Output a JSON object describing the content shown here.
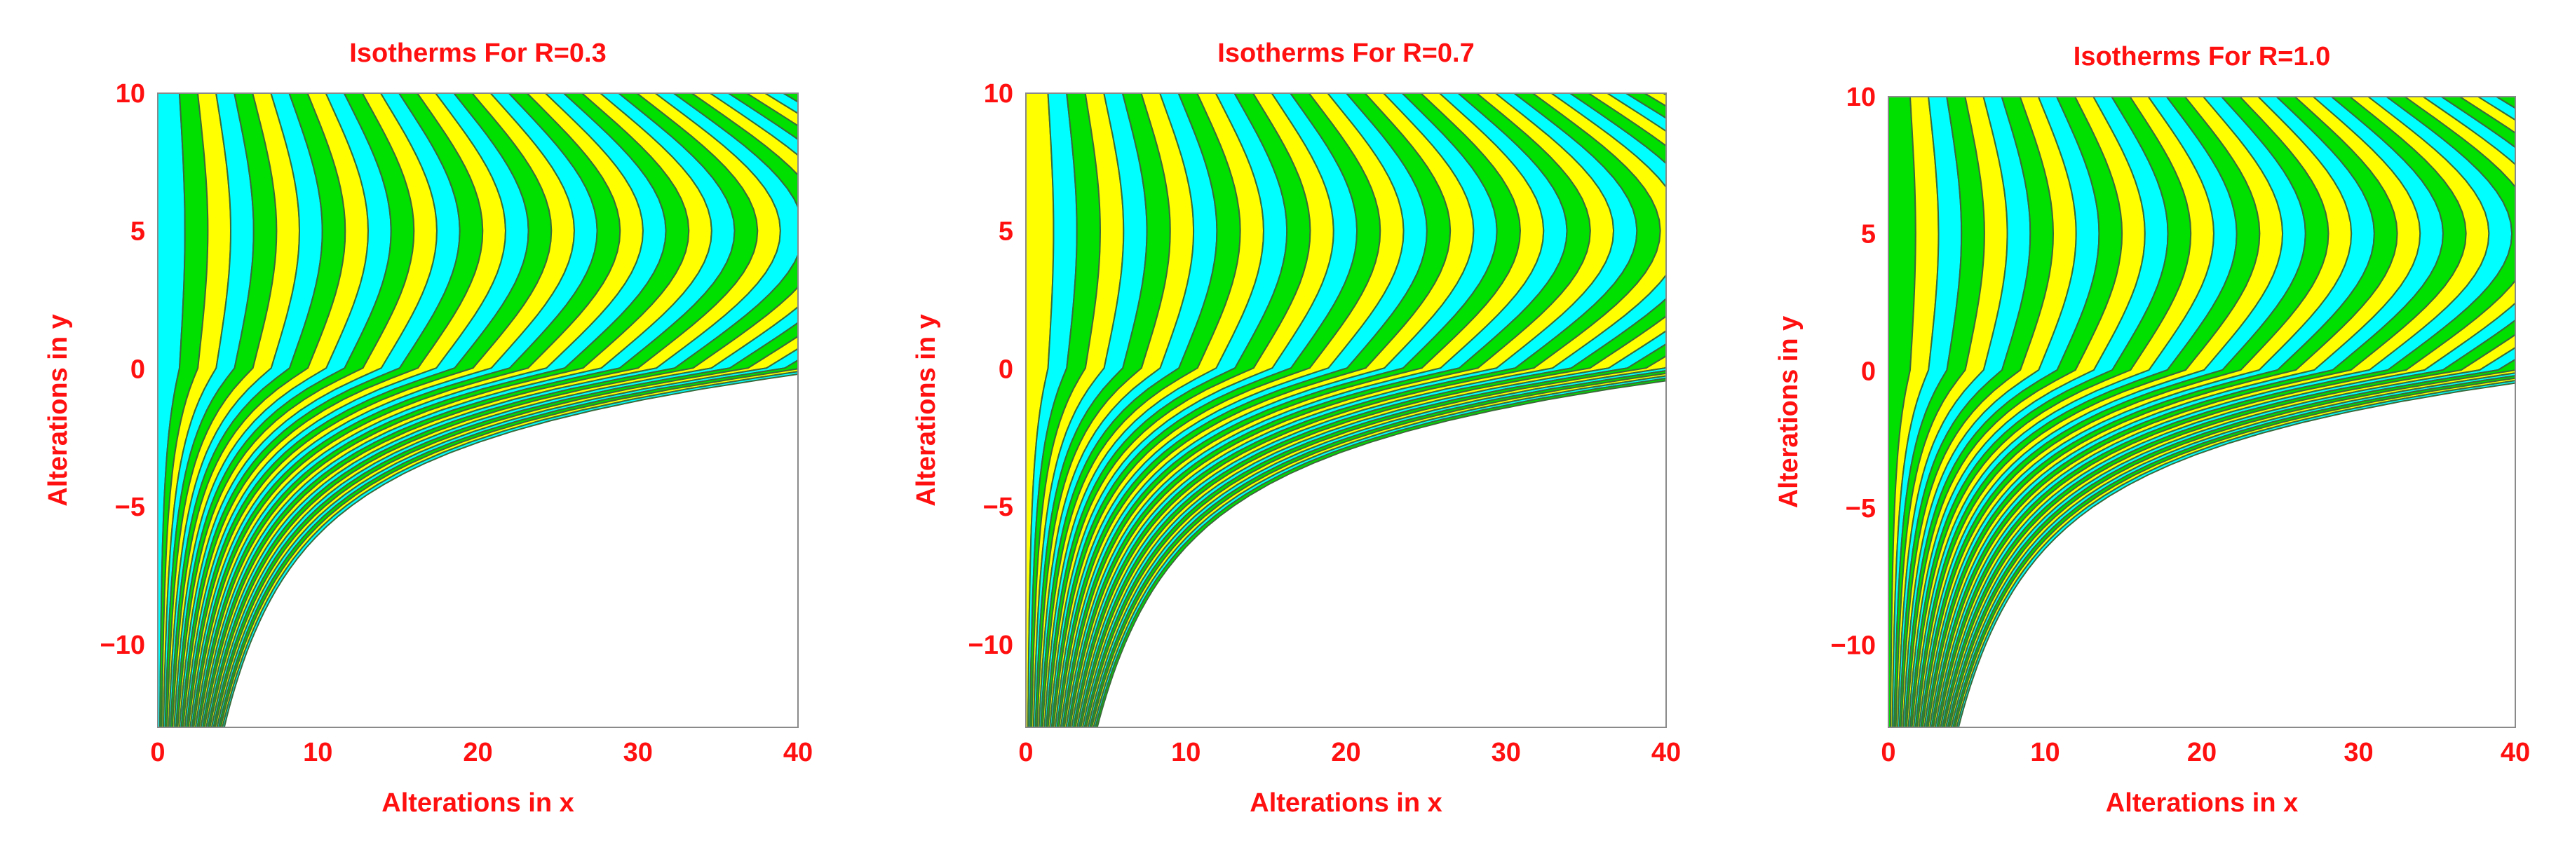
{
  "chart_data": [
    {
      "type": "contour",
      "title": "Isotherms For R=0.3",
      "xlabel": "Alterations in x",
      "ylabel": "Alterations in y",
      "xlim": [
        0,
        40
      ],
      "ylim": [
        -13,
        10
      ],
      "x_ticks": [
        "0",
        "10",
        "20",
        "30",
        "40"
      ],
      "y_ticks": [
        "10",
        "5",
        "0",
        "−5",
        "−10"
      ],
      "fill_colors": [
        "#00ffff",
        "#00e000",
        "#ffff00"
      ],
      "grid": false
    },
    {
      "type": "contour",
      "title": "Isotherms For R=0.7",
      "xlabel": "Alterations in x",
      "ylabel": "Alterations in y",
      "xlim": [
        0,
        40
      ],
      "ylim": [
        -13,
        10
      ],
      "x_ticks": [
        "0",
        "10",
        "20",
        "30",
        "40"
      ],
      "y_ticks": [
        "10",
        "5",
        "0",
        "−5",
        "−10"
      ],
      "fill_colors": [
        "#00ffff",
        "#00e000",
        "#ffff00"
      ],
      "grid": false
    },
    {
      "type": "contour",
      "title": "Isotherms For R=1.0",
      "xlabel": "Alterations in x",
      "ylabel": "Alterations in y",
      "xlim": [
        0,
        40
      ],
      "ylim": [
        -13,
        10
      ],
      "x_ticks": [
        "0",
        "10",
        "20",
        "30",
        "40"
      ],
      "y_ticks": [
        "10",
        "5",
        "0",
        "−5",
        "−10"
      ],
      "fill_colors": [
        "#00ffff",
        "#00e000",
        "#ffff00"
      ],
      "grid": false
    }
  ]
}
